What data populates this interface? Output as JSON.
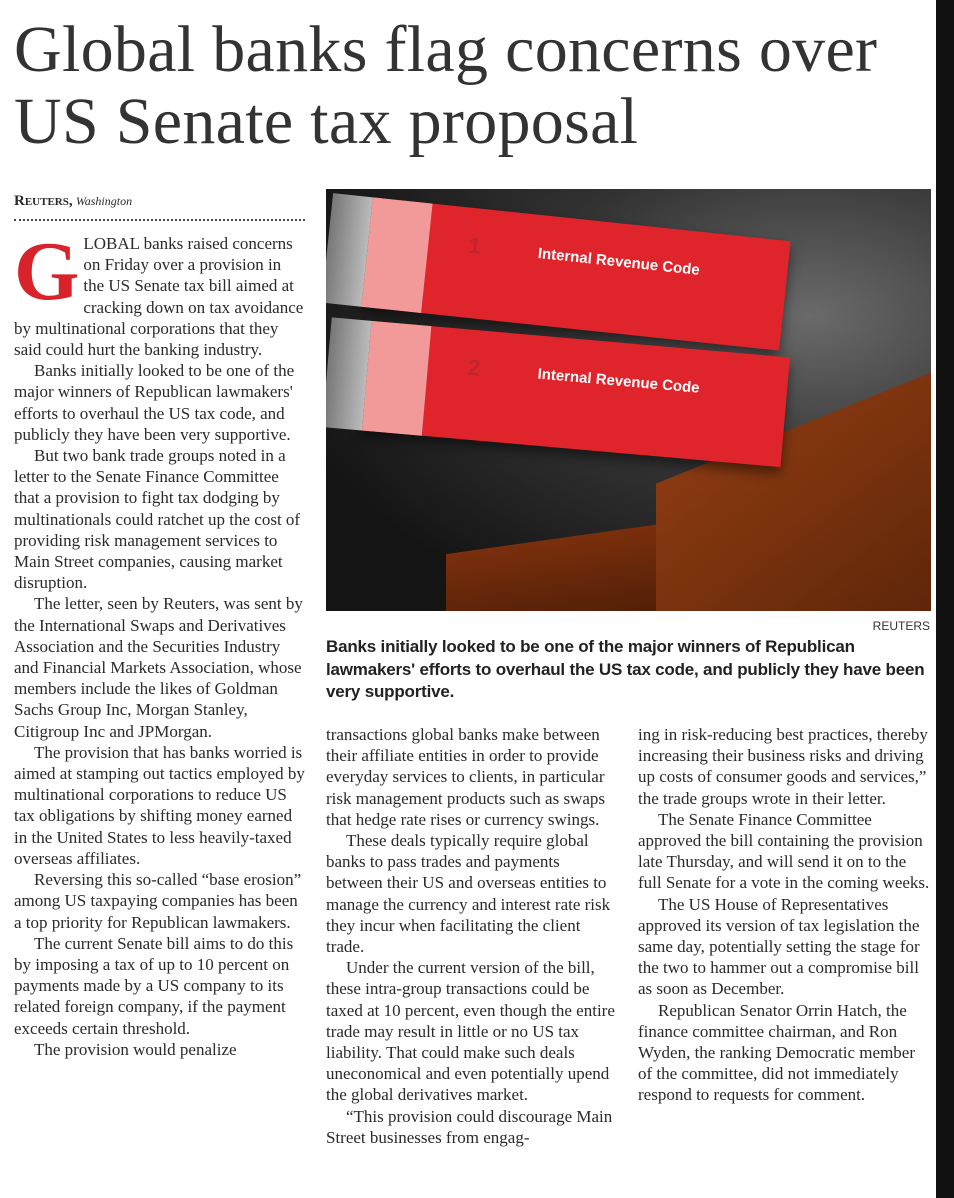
{
  "headline": "Global banks flag concerns over US Senate tax proposal",
  "byline": {
    "agency": "Reuters,",
    "place": "Washington"
  },
  "photo": {
    "credit": "REUTERS",
    "book1_title": "Internal Revenue Code",
    "book1_num": "1",
    "book2_title": "Internal Revenue Code",
    "book2_num": "2"
  },
  "caption": "Banks initially looked to be one of the major winners of Republican lawmakers' efforts to overhaul the US tax code, and publicly they have been very supportive.",
  "col1": {
    "dropcap": "G",
    "p1": "LOBAL banks raised concerns on Friday over a provision in the US Senate tax bill aimed at cracking down on tax avoidance by multinational corporations that they said could hurt the banking industry.",
    "p2": "Banks initially looked to be one of the major winners of Republican lawmakers' efforts to overhaul the US tax code, and publicly they have been very supportive.",
    "p3": "But two bank trade groups noted in a letter to the Senate Finance Committee that a provision to fight tax dodging by multinationals could ratchet up the cost of providing risk management services to Main Street companies, causing market disruption.",
    "p4": "The letter, seen by Reuters, was sent by the International Swaps and Derivatives Association and the Securities Industry and Financial Markets Association, whose members include the likes of Goldman Sachs Group Inc, Morgan Stanley, Citigroup Inc and JPMorgan.",
    "p5": "The provision that has banks worried is aimed at stamping out tactics employed by multinational corporations to reduce US tax obligations by shifting money earned in the United States to less heavily-taxed overseas affiliates.",
    "p6": "Reversing this so-called “base erosion” among US taxpaying companies has been a top priority for Republican lawmakers.",
    "p7": "The current Senate bill aims to do this by imposing a tax of up to 10 percent on payments made by a US company to its related foreign company, if the payment exceeds certain threshold.",
    "p8": "The provision would penalize"
  },
  "col2": {
    "p1": "transactions global banks make between their affiliate entities in order to provide everyday services to clients, in particular risk management products such as swaps that hedge rate rises or currency swings.",
    "p2": "These deals typically require global banks to pass trades and payments between their US and overseas entities to manage the currency and interest rate risk they incur when facilitating the client trade.",
    "p3": "Under the current version of the bill, these intra-group transactions could be taxed at 10 percent, even though the entire trade may result in little or no US tax liability. That could make such deals uneconomical and even potentially upend the global derivatives market.",
    "p4": "“This provision could discourage Main Street businesses from engag-"
  },
  "col3": {
    "p1": "ing in risk-reducing best practices, thereby increasing their business risks and driving up costs of consumer goods and services,” the trade groups wrote in their letter.",
    "p2": "The Senate Finance Committee approved the bill containing the provision late Thursday, and will send it on to the full Senate for a vote in the coming weeks.",
    "p3": "The US House of Representatives approved its version of tax legislation the same day, potentially setting the stage for the two to hammer out a compromise bill as soon as December.",
    "p4": "Republican Senator Orrin Hatch, the finance committee chairman, and Ron Wyden, the ranking Democratic member of the committee, did not immediately respond to requests for comment."
  },
  "colors": {
    "dropcap": "#d8232a",
    "text": "#2a2a2a"
  }
}
